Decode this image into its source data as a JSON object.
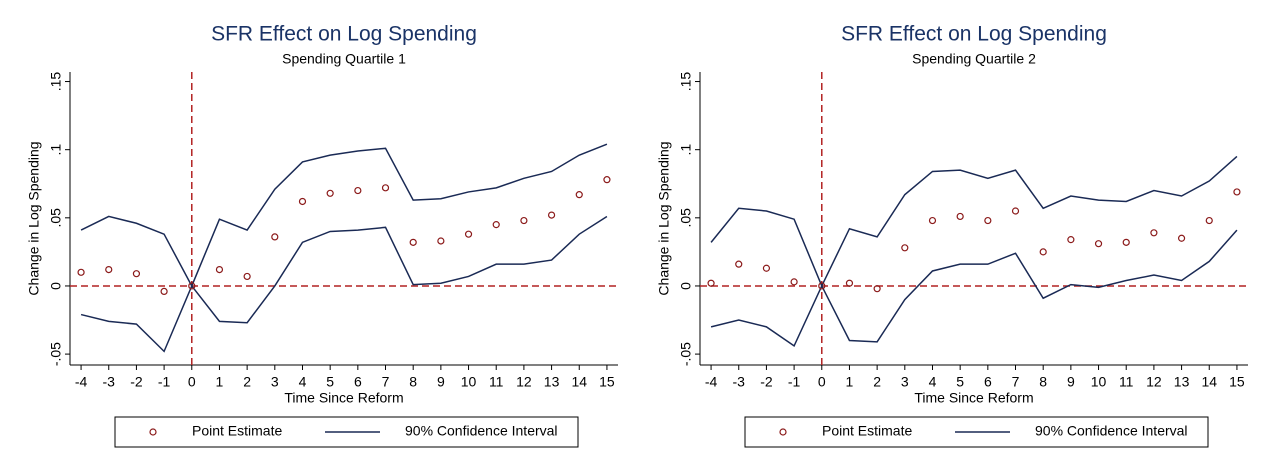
{
  "chart_data": [
    {
      "type": "line",
      "title": "SFR Effect on Log Spending",
      "subtitle": "Spending Quartile 1",
      "x_label": "Time Since Reform",
      "y_label": "Change in Log Spending",
      "x": [
        -4,
        -3,
        -2,
        -1,
        0,
        1,
        2,
        3,
        4,
        5,
        6,
        7,
        8,
        9,
        10,
        11,
        12,
        13,
        14,
        15
      ],
      "xlim": [
        -4.4,
        15.4
      ],
      "xticks": [
        -4,
        -3,
        -2,
        -1,
        0,
        1,
        2,
        3,
        4,
        5,
        6,
        7,
        8,
        9,
        10,
        11,
        12,
        13,
        14,
        15
      ],
      "ylim": [
        -0.058,
        0.157
      ],
      "yticks": [
        {
          "value": -0.05,
          "label": "-.05"
        },
        0,
        {
          "value": 0.05,
          "label": ".05"
        },
        {
          "value": 0.1,
          "label": ".1"
        },
        {
          "value": 0.15,
          "label": ".15"
        }
      ],
      "reference_lines": {
        "x": 0,
        "y": 0,
        "color": "#b22222"
      },
      "series": [
        {
          "name": "Point Estimate",
          "color": "#8b1a1a",
          "marker": "hollow-circle",
          "values": [
            0.01,
            0.012,
            0.009,
            -0.004,
            0,
            0.012,
            0.007,
            0.036,
            0.062,
            0.068,
            0.07,
            0.072,
            0.032,
            0.033,
            0.038,
            0.045,
            0.048,
            0.052,
            0.067,
            0.078
          ]
        },
        {
          "name": "90% Confidence Interval",
          "color": "#1a2a55",
          "upper": [
            0.041,
            0.051,
            0.046,
            0.038,
            0,
            0.049,
            0.041,
            0.071,
            0.091,
            0.096,
            0.099,
            0.101,
            0.063,
            0.064,
            0.069,
            0.072,
            0.079,
            0.084,
            0.096,
            0.104
          ],
          "lower": [
            -0.021,
            -0.026,
            -0.028,
            -0.048,
            0,
            -0.026,
            -0.027,
            0.0,
            0.032,
            0.04,
            0.041,
            0.043,
            0.001,
            0.002,
            0.007,
            0.016,
            0.016,
            0.019,
            0.038,
            0.051
          ]
        }
      ]
    },
    {
      "type": "line",
      "title": "SFR Effect on Log Spending",
      "subtitle": "Spending Quartile 2",
      "x_label": "Time Since Reform",
      "y_label": "Change in Log Spending",
      "x": [
        -4,
        -3,
        -2,
        -1,
        0,
        1,
        2,
        3,
        4,
        5,
        6,
        7,
        8,
        9,
        10,
        11,
        12,
        13,
        14,
        15
      ],
      "xlim": [
        -4.4,
        15.4
      ],
      "xticks": [
        -4,
        -3,
        -2,
        -1,
        0,
        1,
        2,
        3,
        4,
        5,
        6,
        7,
        8,
        9,
        10,
        11,
        12,
        13,
        14,
        15
      ],
      "ylim": [
        -0.058,
        0.157
      ],
      "yticks": [
        {
          "value": -0.05,
          "label": "-.05"
        },
        0,
        {
          "value": 0.05,
          "label": ".05"
        },
        {
          "value": 0.1,
          "label": ".1"
        },
        {
          "value": 0.15,
          "label": ".15"
        }
      ],
      "reference_lines": {
        "x": 0,
        "y": 0,
        "color": "#b22222"
      },
      "series": [
        {
          "name": "Point Estimate",
          "color": "#8b1a1a",
          "marker": "hollow-circle",
          "values": [
            0.002,
            0.016,
            0.013,
            0.003,
            0,
            0.002,
            -0.002,
            0.028,
            0.048,
            0.051,
            0.048,
            0.055,
            0.025,
            0.034,
            0.031,
            0.032,
            0.039,
            0.035,
            0.048,
            0.069
          ]
        },
        {
          "name": "90% Confidence Interval",
          "color": "#1a2a55",
          "upper": [
            0.032,
            0.057,
            0.055,
            0.049,
            0,
            0.042,
            0.036,
            0.067,
            0.084,
            0.085,
            0.079,
            0.085,
            0.057,
            0.066,
            0.063,
            0.062,
            0.07,
            0.066,
            0.077,
            0.095
          ],
          "lower": [
            -0.03,
            -0.025,
            -0.03,
            -0.044,
            0,
            -0.04,
            -0.041,
            -0.01,
            0.011,
            0.016,
            0.016,
            0.024,
            -0.009,
            0.001,
            -0.001,
            0.004,
            0.008,
            0.004,
            0.018,
            0.041
          ]
        }
      ]
    }
  ]
}
